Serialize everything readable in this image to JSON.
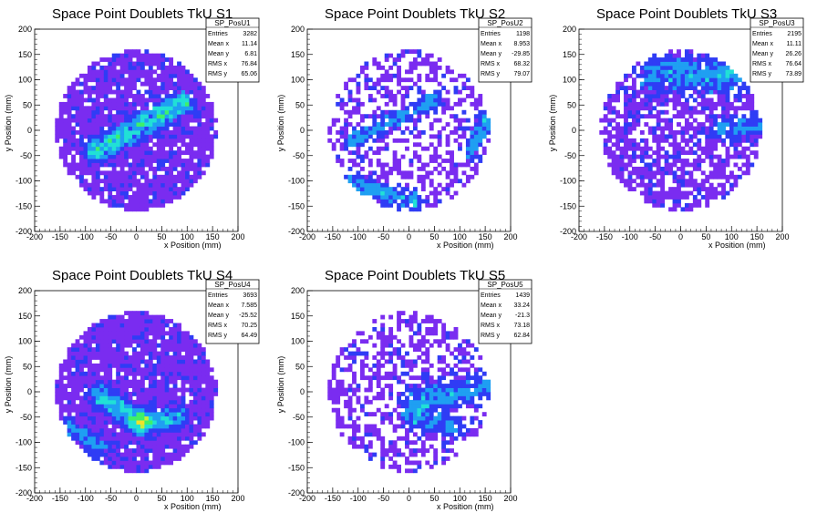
{
  "colors": {
    "palette": [
      "#7a2cf0",
      "#2f3cf5",
      "#1f9ff2",
      "#21e0d6",
      "#3ef06a",
      "#c6ef3a",
      "#f0e12a",
      "#f39a22",
      "#f0312a"
    ]
  },
  "chart_data": [
    {
      "type": "heatmap",
      "title": "Space Point Doublets TkU S1",
      "xlabel": "x Position (mm)",
      "ylabel": "y Position (mm)",
      "xlim": [
        -200,
        200
      ],
      "ylim": [
        -200,
        200
      ],
      "xticks": [
        -200,
        -150,
        -100,
        -50,
        0,
        50,
        100,
        150,
        200
      ],
      "yticks": [
        -200,
        -150,
        -100,
        -50,
        0,
        50,
        100,
        150,
        200
      ],
      "stats": {
        "name": "SP_PosU1",
        "rows": [
          [
            "Entries",
            "3282"
          ],
          [
            "Mean x",
            "11.14"
          ],
          [
            "Mean y",
            "6.81"
          ],
          [
            "RMS x",
            "76.84"
          ],
          [
            "RMS y",
            "65.06"
          ]
        ]
      },
      "density": 0.9,
      "seed": 11,
      "bands": [
        {
          "x1": -80,
          "y1": -40,
          "x2": 90,
          "y2": 55,
          "w": 15,
          "s": 3.2
        }
      ]
    },
    {
      "type": "heatmap",
      "title": "Space Point Doublets TkU S2",
      "xlabel": "x Position (mm)",
      "ylabel": "y Position (mm)",
      "xlim": [
        -200,
        200
      ],
      "ylim": [
        -200,
        200
      ],
      "xticks": [
        -200,
        -150,
        -100,
        -50,
        0,
        50,
        100,
        150,
        200
      ],
      "yticks": [
        -200,
        -150,
        -100,
        -50,
        0,
        50,
        100,
        150,
        200
      ],
      "stats": {
        "name": "SP_PosU2",
        "rows": [
          [
            "Entries",
            "1198"
          ],
          [
            "Mean x",
            "8.953"
          ],
          [
            "Mean y",
            "-29.85"
          ],
          [
            "RMS x",
            "68.32"
          ],
          [
            "RMS y",
            "79.07"
          ]
        ]
      },
      "density": 0.45,
      "seed": 22,
      "bands": [
        {
          "x1": -110,
          "y1": -20,
          "x2": 50,
          "y2": 60,
          "w": 12,
          "s": 1.8
        },
        {
          "x1": -130,
          "y1": -100,
          "x2": 10,
          "y2": -140,
          "w": 14,
          "s": 2.2
        },
        {
          "x1": 120,
          "y1": -40,
          "x2": 150,
          "y2": 20,
          "w": 12,
          "s": 2.0
        }
      ]
    },
    {
      "type": "heatmap",
      "title": "Space Point Doublets TkU S3",
      "xlabel": "x Position (mm)",
      "ylabel": "y Position (mm)",
      "xlim": [
        -200,
        200
      ],
      "ylim": [
        -200,
        200
      ],
      "xticks": [
        -200,
        -150,
        -100,
        -50,
        0,
        50,
        100,
        150,
        200
      ],
      "yticks": [
        -200,
        -150,
        -100,
        -50,
        0,
        50,
        100,
        150,
        200
      ],
      "stats": {
        "name": "SP_PosU3",
        "rows": [
          [
            "Entries",
            "2195"
          ],
          [
            "Mean x",
            "11.11"
          ],
          [
            "Mean y",
            "26.26"
          ],
          [
            "RMS x",
            "76.64"
          ],
          [
            "RMS y",
            "73.89"
          ]
        ]
      },
      "density": 0.7,
      "seed": 33,
      "bands": [
        {
          "x1": -50,
          "y1": 110,
          "x2": 110,
          "y2": 110,
          "w": 25,
          "s": 2.0
        },
        {
          "x1": 80,
          "y1": 0,
          "x2": 150,
          "y2": 10,
          "w": 15,
          "s": 1.8
        }
      ]
    },
    {
      "type": "heatmap",
      "title": "Space Point Doublets TkU S4",
      "xlabel": "x Position (mm)",
      "ylabel": "y Position (mm)",
      "xlim": [
        -200,
        200
      ],
      "ylim": [
        -200,
        200
      ],
      "xticks": [
        -200,
        -150,
        -100,
        -50,
        0,
        50,
        100,
        150,
        200
      ],
      "yticks": [
        -200,
        -150,
        -100,
        -50,
        0,
        50,
        100,
        150,
        200
      ],
      "stats": {
        "name": "SP_PosU4",
        "rows": [
          [
            "Entries",
            "3693"
          ],
          [
            "Mean x",
            "7.585"
          ],
          [
            "Mean y",
            "-25.52"
          ],
          [
            "RMS x",
            "70.25"
          ],
          [
            "RMS y",
            "64.49"
          ]
        ]
      },
      "density": 0.92,
      "seed": 44,
      "bands": [
        {
          "x1": -70,
          "y1": -10,
          "x2": 10,
          "y2": -60,
          "w": 15,
          "s": 3.0
        },
        {
          "x1": 10,
          "y1": -60,
          "x2": 80,
          "y2": -50,
          "w": 14,
          "s": 2.6
        },
        {
          "x1": -130,
          "y1": -70,
          "x2": -70,
          "y2": -110,
          "w": 15,
          "s": 1.6
        }
      ]
    },
    {
      "type": "heatmap",
      "title": "Space Point Doublets TkU S5",
      "xlabel": "x Position (mm)",
      "ylabel": "y Position (mm)",
      "xlim": [
        -200,
        200
      ],
      "ylim": [
        -200,
        200
      ],
      "xticks": [
        -200,
        -150,
        -100,
        -50,
        0,
        50,
        100,
        150,
        200
      ],
      "yticks": [
        -200,
        -150,
        -100,
        -50,
        0,
        50,
        100,
        150,
        200
      ],
      "stats": {
        "name": "SP_PosU5",
        "rows": [
          [
            "Entries",
            "1439"
          ],
          [
            "Mean x",
            "33.24"
          ],
          [
            "Mean y",
            "-21.3"
          ],
          [
            "RMS x",
            "73.18"
          ],
          [
            "RMS y",
            "62.84"
          ]
        ]
      },
      "density": 0.5,
      "seed": 55,
      "bands": [
        {
          "x1": 20,
          "y1": -20,
          "x2": 150,
          "y2": 10,
          "w": 20,
          "s": 2.0
        },
        {
          "x1": 0,
          "y1": -50,
          "x2": 90,
          "y2": -70,
          "w": 15,
          "s": 1.6
        }
      ]
    }
  ]
}
